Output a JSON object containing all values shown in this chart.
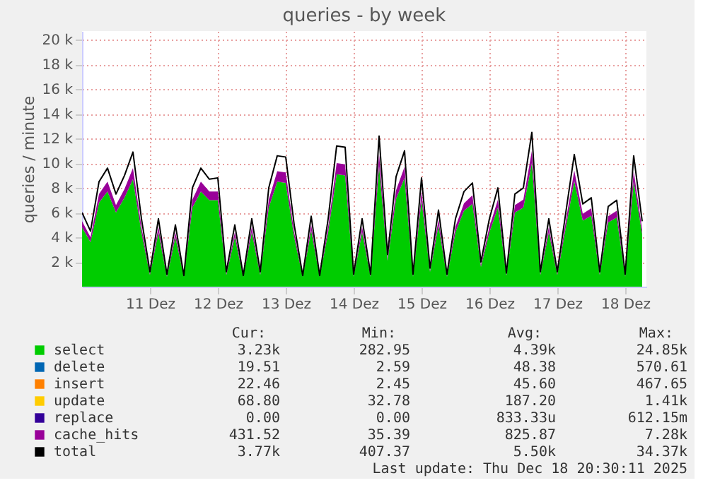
{
  "chart_data": {
    "type": "area",
    "stacked": true,
    "title": "queries - by week",
    "ylabel": "queries / minute",
    "x": [
      "2025-12-10T00:00",
      "2025-12-10T03:00",
      "2025-12-10T06:00",
      "2025-12-10T09:00",
      "2025-12-10T12:00",
      "2025-12-10T15:00",
      "2025-12-10T18:00",
      "2025-12-10T21:00",
      "2025-12-11T00:00",
      "2025-12-11T03:00",
      "2025-12-11T06:00",
      "2025-12-11T09:00",
      "2025-12-11T12:00",
      "2025-12-11T15:00",
      "2025-12-11T18:00",
      "2025-12-11T21:00",
      "2025-12-12T00:00",
      "2025-12-12T03:00",
      "2025-12-12T06:00",
      "2025-12-12T09:00",
      "2025-12-12T12:00",
      "2025-12-12T15:00",
      "2025-12-12T18:00",
      "2025-12-12T21:00",
      "2025-12-13T00:00",
      "2025-12-13T03:00",
      "2025-12-13T06:00",
      "2025-12-13T09:00",
      "2025-12-13T12:00",
      "2025-12-13T15:00",
      "2025-12-13T18:00",
      "2025-12-13T21:00",
      "2025-12-14T00:00",
      "2025-12-14T03:00",
      "2025-12-14T06:00",
      "2025-12-14T09:00",
      "2025-12-14T12:00",
      "2025-12-14T15:00",
      "2025-12-14T18:00",
      "2025-12-14T21:00",
      "2025-12-15T00:00",
      "2025-12-15T03:00",
      "2025-12-15T06:00",
      "2025-12-15T09:00",
      "2025-12-15T12:00",
      "2025-12-15T15:00",
      "2025-12-15T18:00",
      "2025-12-15T21:00",
      "2025-12-16T00:00",
      "2025-12-16T03:00",
      "2025-12-16T06:00",
      "2025-12-16T09:00",
      "2025-12-16T12:00",
      "2025-12-16T15:00",
      "2025-12-16T18:00",
      "2025-12-16T21:00",
      "2025-12-17T00:00",
      "2025-12-17T03:00",
      "2025-12-17T06:00",
      "2025-12-17T09:00",
      "2025-12-17T12:00",
      "2025-12-17T15:00",
      "2025-12-17T18:00",
      "2025-12-17T21:00",
      "2025-12-18T00:00",
      "2025-12-18T03:00",
      "2025-12-18T06:00"
    ],
    "xlim": [
      "2025-12-10T00:00",
      "2025-12-18T07:30"
    ],
    "xticks": [
      {
        "value": "2025-12-11T00:00",
        "label": "11 Dez"
      },
      {
        "value": "2025-12-12T00:00",
        "label": "12 Dez"
      },
      {
        "value": "2025-12-13T00:00",
        "label": "13 Dez"
      },
      {
        "value": "2025-12-14T00:00",
        "label": "14 Dez"
      },
      {
        "value": "2025-12-15T00:00",
        "label": "15 Dez"
      },
      {
        "value": "2025-12-16T00:00",
        "label": "16 Dez"
      },
      {
        "value": "2025-12-17T00:00",
        "label": "17 Dez"
      },
      {
        "value": "2025-12-18T00:00",
        "label": "18 Dez"
      }
    ],
    "ylim": [
      0,
      20700
    ],
    "yticks": [
      {
        "value": 2000,
        "label": "2 k"
      },
      {
        "value": 4000,
        "label": "4 k"
      },
      {
        "value": 6000,
        "label": "6 k"
      },
      {
        "value": 8000,
        "label": "8 k"
      },
      {
        "value": 10000,
        "label": "10 k"
      },
      {
        "value": 12000,
        "label": "12 k"
      },
      {
        "value": 14000,
        "label": "14 k"
      },
      {
        "value": 16000,
        "label": "16 k"
      },
      {
        "value": 18000,
        "label": "18 k"
      },
      {
        "value": 20000,
        "label": "20 k"
      }
    ],
    "grid": true,
    "legend": "bottom",
    "series": [
      {
        "name": "select",
        "color": "#00cc00",
        "values": [
          4800,
          3600,
          6800,
          7700,
          6000,
          7200,
          8700,
          4400,
          950,
          4400,
          800,
          4000,
          800,
          6400,
          7700,
          7000,
          7000,
          950,
          4000,
          800,
          4400,
          950,
          6400,
          8500,
          8400,
          4000,
          800,
          4550,
          800,
          4400,
          9100,
          9000,
          800,
          4400,
          800,
          9750,
          2100,
          7100,
          8800,
          800,
          7000,
          1200,
          4950,
          800,
          4400,
          6150,
          6700,
          1600,
          4400,
          6400,
          880,
          6000,
          6400,
          10000,
          950,
          4400,
          950,
          4800,
          8550,
          5350,
          5750,
          950,
          5200,
          5600,
          800,
          8500,
          4250
        ]
      },
      {
        "name": "delete",
        "color": "#0066b3",
        "values": [
          null,
          null,
          null,
          null,
          null,
          null,
          null,
          null,
          null,
          null,
          null,
          null,
          null,
          null,
          null,
          null,
          null,
          null,
          null,
          null,
          null,
          null,
          null,
          null,
          null,
          null,
          null,
          null,
          null,
          null,
          null,
          null,
          null,
          null,
          null,
          null,
          null,
          null,
          null,
          null,
          null,
          null,
          null,
          null,
          null,
          null,
          null,
          null,
          null,
          null,
          null,
          null,
          null,
          null,
          null,
          null,
          null,
          null,
          null,
          null,
          null,
          null,
          null,
          null,
          null,
          null,
          null
        ]
      },
      {
        "name": "insert",
        "color": "#ff8000",
        "values": [
          null,
          null,
          null,
          null,
          null,
          null,
          null,
          null,
          null,
          null,
          null,
          null,
          null,
          null,
          null,
          null,
          null,
          null,
          null,
          null,
          null,
          null,
          null,
          null,
          null,
          null,
          null,
          null,
          null,
          null,
          null,
          null,
          null,
          null,
          null,
          null,
          null,
          null,
          null,
          null,
          null,
          null,
          null,
          null,
          null,
          null,
          null,
          null,
          null,
          null,
          null,
          null,
          null,
          null,
          null,
          null,
          null,
          null,
          null,
          null,
          null,
          null,
          null,
          null,
          null,
          null,
          null
        ]
      },
      {
        "name": "update",
        "color": "#ffcc00",
        "values": [
          null,
          null,
          null,
          null,
          null,
          null,
          null,
          null,
          null,
          null,
          null,
          null,
          null,
          null,
          null,
          null,
          null,
          null,
          null,
          null,
          null,
          null,
          null,
          null,
          null,
          null,
          null,
          null,
          null,
          null,
          null,
          null,
          null,
          null,
          null,
          null,
          null,
          null,
          null,
          null,
          null,
          null,
          null,
          null,
          null,
          null,
          null,
          null,
          null,
          null,
          null,
          null,
          null,
          null,
          null,
          null,
          null,
          null,
          null,
          null,
          null,
          null,
          null,
          null,
          null,
          null,
          null
        ]
      },
      {
        "name": "replace",
        "color": "#330099",
        "values": [
          null,
          null,
          null,
          null,
          null,
          null,
          null,
          null,
          null,
          null,
          null,
          null,
          null,
          null,
          null,
          null,
          null,
          null,
          null,
          null,
          null,
          null,
          null,
          null,
          null,
          null,
          null,
          null,
          null,
          null,
          null,
          null,
          null,
          null,
          null,
          null,
          null,
          null,
          null,
          null,
          null,
          null,
          null,
          null,
          null,
          null,
          null,
          null,
          null,
          null,
          null,
          null,
          null,
          null,
          null,
          null,
          null,
          null,
          null,
          null,
          null,
          null,
          null,
          null,
          null,
          null,
          null
        ]
      },
      {
        "name": "cache_hits",
        "color": "#990099",
        "values": [
          500,
          400,
          700,
          800,
          600,
          700,
          900,
          450,
          100,
          450,
          80,
          400,
          70,
          650,
          800,
          700,
          700,
          100,
          400,
          70,
          450,
          100,
          650,
          850,
          850,
          400,
          70,
          450,
          70,
          450,
          900,
          900,
          80,
          450,
          80,
          1000,
          200,
          700,
          900,
          80,
          700,
          120,
          500,
          80,
          450,
          600,
          700,
          160,
          450,
          650,
          90,
          600,
          650,
          1000,
          100,
          450,
          100,
          500,
          850,
          550,
          600,
          100,
          500,
          550,
          80,
          850,
          400
        ]
      },
      {
        "name": "total",
        "type": "line",
        "color": "#000000",
        "values": [
          6000,
          4500,
          8500,
          9600,
          7500,
          9000,
          10900,
          5500,
          1200,
          5500,
          1000,
          5000,
          900,
          8000,
          9600,
          8700,
          8800,
          1200,
          5000,
          900,
          5500,
          1200,
          8000,
          10600,
          10500,
          5000,
          900,
          5700,
          900,
          5500,
          11400,
          11300,
          1000,
          5500,
          1000,
          12200,
          2600,
          8900,
          11000,
          1000,
          8800,
          1500,
          6200,
          1000,
          5500,
          7700,
          8400,
          2000,
          5500,
          8000,
          1100,
          7500,
          8000,
          12500,
          1200,
          5500,
          1200,
          6000,
          10700,
          6700,
          7200,
          1200,
          6500,
          7000,
          1000,
          10600,
          5300
        ]
      }
    ],
    "annotations": [
      "Cur:",
      "Min:",
      "Avg:",
      "Max:",
      "3.23k",
      "282.95",
      "4.39k",
      "24.85k",
      "19.51",
      "2.59",
      "48.38",
      "570.61",
      "22.46",
      "2.45",
      "45.60",
      "467.65",
      "68.80",
      "32.78",
      "187.20",
      "1.41k",
      "0.00",
      "0.00",
      "833.33u",
      "612.15m",
      "431.52",
      "35.39",
      "825.87",
      "7.28k",
      "3.77k",
      "407.37",
      "5.50k",
      "34.37k",
      "Last update: Thu Dec 18 20:30:11 2025"
    ]
  }
}
